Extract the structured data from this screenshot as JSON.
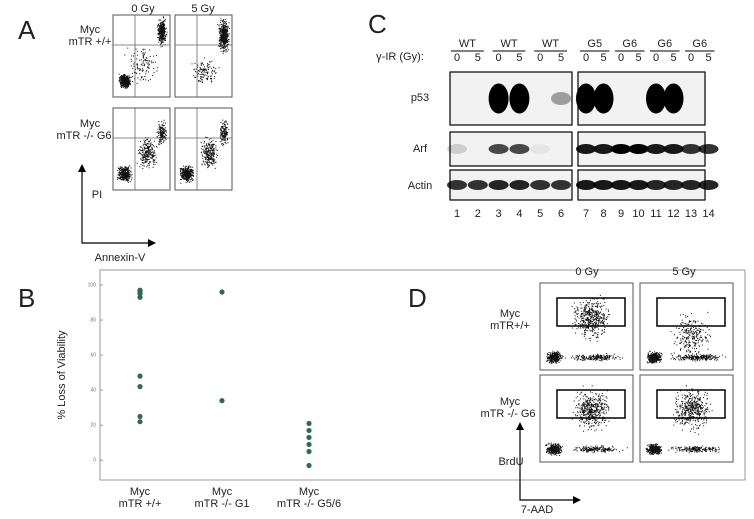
{
  "panels": {
    "A": {
      "letter": "A",
      "columns": [
        "0 Gy",
        "5 Gy"
      ],
      "rows": [
        [
          "Myc",
          "mTR +/+"
        ],
        [
          "Myc",
          "mTR -/- G6"
        ]
      ],
      "y_axis": "PI",
      "x_axis": "Annexin-V"
    },
    "C": {
      "letter": "C",
      "dose_label": "γ-IR (Gy):",
      "groups": [
        "WT",
        "WT",
        "WT",
        "G5",
        "G6",
        "G6",
        "G6"
      ],
      "doses": [
        "0",
        "5"
      ],
      "rows": [
        "p53",
        "Arf",
        "Actin"
      ],
      "lanes": [
        "1",
        "2",
        "3",
        "4",
        "5",
        "6",
        "7",
        "8",
        "9",
        "10",
        "11",
        "12",
        "13",
        "14"
      ]
    },
    "D": {
      "letter": "D",
      "columns": [
        "0 Gy",
        "5 Gy"
      ],
      "rows": [
        [
          "Myc",
          "mTR+/+"
        ],
        [
          "Myc",
          "mTR -/- G6"
        ]
      ],
      "y_axis": "BrdU",
      "x_axis": "7-AAD"
    }
  },
  "chart_data": {
    "type": "strip",
    "letter": "B",
    "y_label": "% Loss of Viability",
    "categories": [
      [
        "Myc",
        "mTR +/+"
      ],
      [
        "Myc",
        "mTR -/- G1"
      ],
      [
        "Myc",
        "mTR -/- G5/6"
      ]
    ],
    "values": [
      [
        97,
        95,
        93,
        96,
        48,
        42,
        25,
        22
      ],
      [
        96,
        34
      ],
      [
        21,
        17,
        13,
        9,
        5,
        -3
      ]
    ],
    "color": "#2e6b50",
    "ylim": [
      -5,
      100
    ],
    "yticks": [
      0,
      20,
      40,
      60,
      80,
      100
    ]
  }
}
